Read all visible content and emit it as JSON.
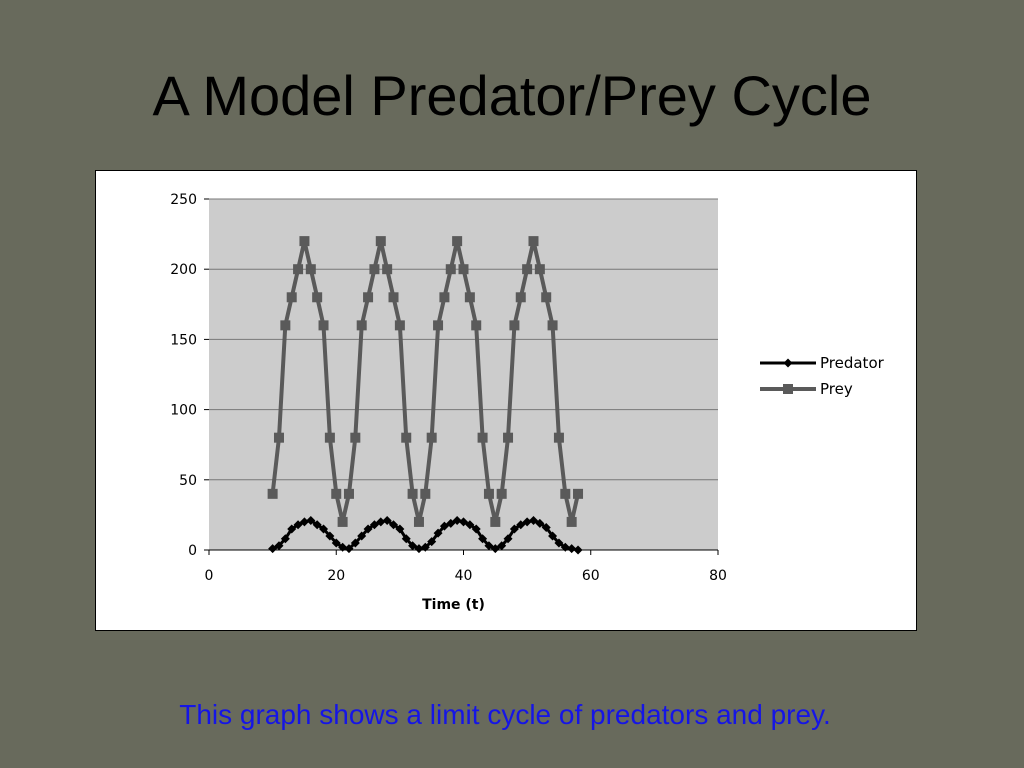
{
  "slide": {
    "title": "A Model Predator/Prey Cycle",
    "caption": "This graph shows a limit cycle of predators and prey.",
    "background_color": "#686a5c",
    "caption_color": "#1515e6"
  },
  "chart_data": {
    "type": "line",
    "title": "",
    "xlabel": "Time (t)",
    "ylabel": "",
    "xlim": [
      0,
      80
    ],
    "ylim": [
      0,
      250
    ],
    "xticks": [
      0,
      20,
      40,
      60,
      80
    ],
    "yticks": [
      0,
      50,
      100,
      150,
      200,
      250
    ],
    "grid": true,
    "plot_background": "#cccccc",
    "legend": "right",
    "series": [
      {
        "name": "Predator",
        "color": "#000000",
        "marker": "diamond",
        "x": [
          10,
          11,
          12,
          13,
          14,
          15,
          16,
          17,
          18,
          19,
          20,
          21,
          22,
          23,
          24,
          25,
          26,
          27,
          28,
          29,
          30,
          31,
          32,
          33,
          34,
          35,
          36,
          37,
          38,
          39,
          40,
          41,
          42,
          43,
          44,
          45,
          46,
          47,
          48,
          49,
          50,
          51,
          52,
          53,
          54,
          55,
          56,
          57,
          58
        ],
        "values": [
          1,
          3,
          8,
          15,
          18,
          20,
          21,
          18,
          15,
          10,
          5,
          2,
          1,
          5,
          10,
          15,
          18,
          20,
          21,
          18,
          15,
          8,
          3,
          1,
          2,
          6,
          12,
          17,
          19,
          21,
          20,
          18,
          15,
          8,
          3,
          1,
          3,
          8,
          15,
          18,
          20,
          21,
          19,
          16,
          10,
          5,
          2,
          1,
          0
        ]
      },
      {
        "name": "Prey",
        "color": "#5a5a5a",
        "marker": "square",
        "x": [
          10,
          11,
          12,
          13,
          14,
          15,
          16,
          17,
          18,
          19,
          20,
          21,
          22,
          23,
          24,
          25,
          26,
          27,
          28,
          29,
          30,
          31,
          32,
          33,
          34,
          35,
          36,
          37,
          38,
          39,
          40,
          41,
          42,
          43,
          44,
          45,
          46,
          47,
          48,
          49,
          50,
          51,
          52,
          53,
          54,
          55,
          56,
          57,
          58
        ],
        "values": [
          40,
          80,
          160,
          180,
          200,
          220,
          200,
          180,
          160,
          80,
          40,
          20,
          40,
          80,
          160,
          180,
          200,
          220,
          200,
          180,
          160,
          80,
          40,
          20,
          40,
          80,
          160,
          180,
          200,
          220,
          200,
          180,
          160,
          80,
          40,
          20,
          40,
          80,
          160,
          180,
          200,
          220,
          200,
          180,
          160,
          80,
          40,
          20,
          40
        ]
      }
    ]
  }
}
